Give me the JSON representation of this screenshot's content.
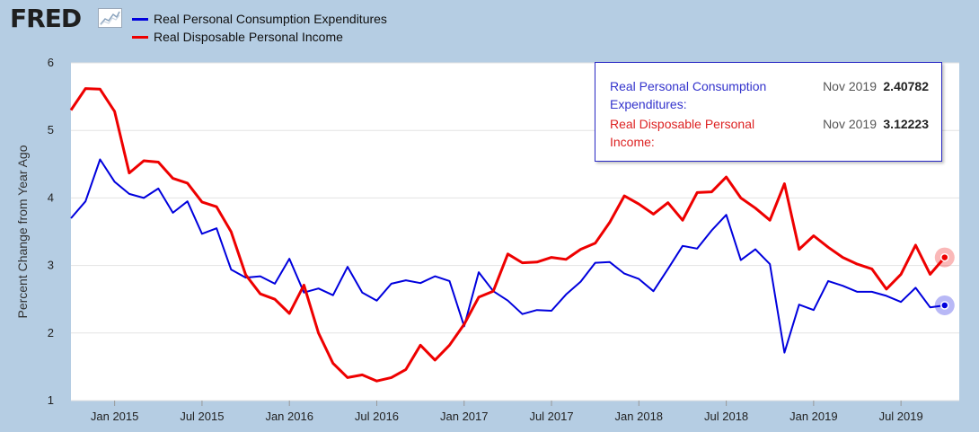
{
  "header": {
    "logo_text": "FRED",
    "legend": [
      {
        "label": "Real Personal Consumption Expenditures",
        "color": "#0000dd"
      },
      {
        "label": "Real Disposable Personal Income",
        "color": "#ee0000"
      }
    ]
  },
  "tooltip": {
    "rows": [
      {
        "name": "Real Personal Consumption Expenditures:",
        "date": "Nov 2019",
        "value": "2.40782",
        "color": "#3333cc"
      },
      {
        "name": "Real Disposable Personal Income:",
        "date": "Nov 2019",
        "value": "3.12223",
        "color": "#dd2222"
      }
    ]
  },
  "chart_data": {
    "type": "line",
    "ylabel": "Percent Change from Year Ago",
    "ylim": [
      1,
      6
    ],
    "yticks": [
      1,
      2,
      3,
      4,
      5,
      6
    ],
    "x_start": "Oct 2014",
    "x_end": "Nov 2019",
    "xticks": [
      "Jan 2015",
      "Jul 2015",
      "Jan 2016",
      "Jul 2016",
      "Jan 2017",
      "Jul 2017",
      "Jan 2018",
      "Jul 2018",
      "Jan 2019",
      "Jul 2019"
    ],
    "grid": "horizontal",
    "series": [
      {
        "name": "Real Personal Consumption Expenditures",
        "color": "#0000dd",
        "values": [
          3.7,
          3.95,
          4.57,
          4.24,
          4.06,
          4.0,
          4.14,
          3.78,
          3.95,
          3.47,
          3.55,
          2.94,
          2.82,
          2.84,
          2.73,
          3.1,
          2.6,
          2.66,
          2.56,
          2.98,
          2.6,
          2.48,
          2.73,
          2.78,
          2.74,
          2.84,
          2.77,
          2.1,
          2.9,
          2.62,
          2.48,
          2.28,
          2.34,
          2.33,
          2.57,
          2.76,
          3.04,
          3.05,
          2.88,
          2.8,
          2.62,
          2.95,
          3.29,
          3.25,
          3.52,
          3.75,
          3.08,
          3.24,
          3.02,
          1.71,
          2.42,
          2.34,
          2.77,
          2.7,
          2.61,
          2.61,
          2.55,
          2.46,
          2.67,
          2.38,
          2.41
        ]
      },
      {
        "name": "Real Disposable Personal Income",
        "color": "#ee0000",
        "values": [
          5.3,
          5.62,
          5.61,
          5.28,
          4.37,
          4.55,
          4.53,
          4.29,
          4.22,
          3.94,
          3.87,
          3.5,
          2.86,
          2.58,
          2.5,
          2.29,
          2.71,
          2.0,
          1.55,
          1.34,
          1.38,
          1.29,
          1.34,
          1.46,
          1.82,
          1.6,
          1.82,
          2.13,
          2.53,
          2.62,
          3.17,
          3.04,
          3.05,
          3.12,
          3.09,
          3.24,
          3.33,
          3.64,
          4.03,
          3.91,
          3.76,
          3.93,
          3.67,
          4.08,
          4.09,
          4.31,
          4.0,
          3.85,
          3.67,
          4.21,
          3.24,
          3.44,
          3.27,
          3.12,
          3.02,
          2.95,
          2.65,
          2.87,
          3.3,
          2.87,
          3.12
        ]
      }
    ]
  }
}
